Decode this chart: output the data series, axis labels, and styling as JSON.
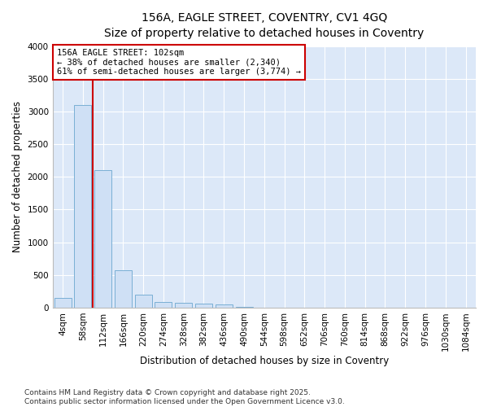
{
  "title_line1": "156A, EAGLE STREET, COVENTRY, CV1 4GQ",
  "title_line2": "Size of property relative to detached houses in Coventry",
  "xlabel": "Distribution of detached houses by size in Coventry",
  "ylabel": "Number of detached properties",
  "bar_color": "#cfe0f5",
  "bar_edge_color": "#7aafd4",
  "background_color": "#dce8f8",
  "fig_background": "#ffffff",
  "grid_color": "#ffffff",
  "categories": [
    "4sqm",
    "58sqm",
    "112sqm",
    "166sqm",
    "220sqm",
    "274sqm",
    "328sqm",
    "382sqm",
    "436sqm",
    "490sqm",
    "544sqm",
    "598sqm",
    "652sqm",
    "706sqm",
    "760sqm",
    "814sqm",
    "868sqm",
    "922sqm",
    "976sqm",
    "1030sqm",
    "1084sqm"
  ],
  "values": [
    150,
    3100,
    2100,
    575,
    200,
    90,
    75,
    60,
    48,
    6,
    2,
    1,
    1,
    0,
    0,
    0,
    0,
    0,
    0,
    0,
    0
  ],
  "ylim": [
    0,
    4000
  ],
  "yticks": [
    0,
    500,
    1000,
    1500,
    2000,
    2500,
    3000,
    3500,
    4000
  ],
  "property_label": "156A EAGLE STREET: 102sqm",
  "annotation_line1": "← 38% of detached houses are smaller (2,340)",
  "annotation_line2": "61% of semi-detached houses are larger (3,774) →",
  "vline_color": "#cc0000",
  "annotation_box_edge": "#cc0000",
  "footer_line1": "Contains HM Land Registry data © Crown copyright and database right 2025.",
  "footer_line2": "Contains public sector information licensed under the Open Government Licence v3.0.",
  "title_fontsize": 10,
  "subtitle_fontsize": 9,
  "axis_label_fontsize": 8.5,
  "tick_fontsize": 7.5,
  "footer_fontsize": 6.5,
  "annotation_fontsize": 7.5,
  "vline_x": 1.5
}
